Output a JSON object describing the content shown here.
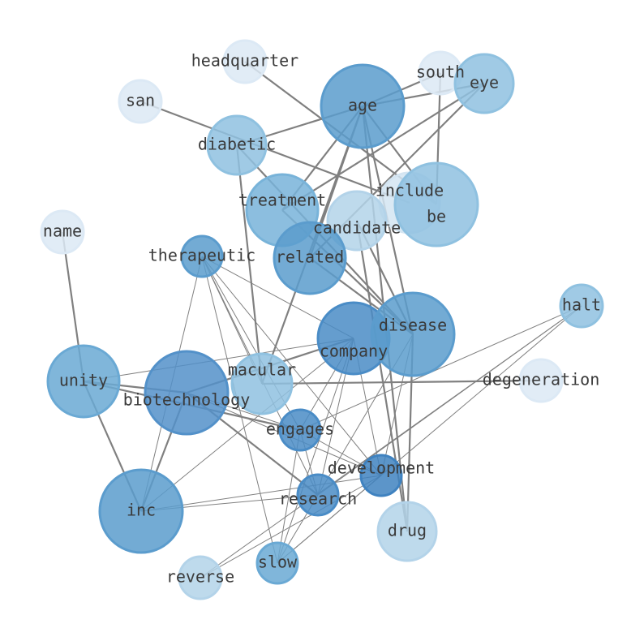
{
  "nodes": [
    {
      "id": "headquarter",
      "label": "headquarter",
      "color": "#dce9f5"
    },
    {
      "id": "san",
      "label": "san",
      "color": "#dce9f5"
    },
    {
      "id": "south",
      "label": "south",
      "color": "#dce9f5"
    },
    {
      "id": "eye",
      "label": "eye",
      "color": "#8fc1e0"
    },
    {
      "id": "age",
      "label": "age",
      "color": "#5b9ccd"
    },
    {
      "id": "diabetic",
      "label": "diabetic",
      "color": "#8fc1e0"
    },
    {
      "id": "include",
      "label": "include",
      "color": "#d4e5f2"
    },
    {
      "id": "be",
      "label": "be",
      "color": "#8fc1e0"
    },
    {
      "id": "treatment",
      "label": "treatment",
      "color": "#78b3d9"
    },
    {
      "id": "candidate",
      "label": "candidate",
      "color": "#b3d3e9"
    },
    {
      "id": "name",
      "label": "name",
      "color": "#dce9f5"
    },
    {
      "id": "therapeutic",
      "label": "therapeutic",
      "color": "#5b9ccd"
    },
    {
      "id": "related",
      "label": "related",
      "color": "#5b9ccd"
    },
    {
      "id": "halt",
      "label": "halt",
      "color": "#8fc1e0"
    },
    {
      "id": "company",
      "label": "company",
      "color": "#4a8cc6"
    },
    {
      "id": "disease",
      "label": "disease",
      "color": "#5b9ccd"
    },
    {
      "id": "unity",
      "label": "unity",
      "color": "#6aa9d4"
    },
    {
      "id": "biotechnology",
      "label": "biotechnology",
      "color": "#5391c9"
    },
    {
      "id": "macular",
      "label": "macular",
      "color": "#8fc1e0"
    },
    {
      "id": "degeneration",
      "label": "degeneration",
      "color": "#dce9f5"
    },
    {
      "id": "engages",
      "label": "engages",
      "color": "#4a8cc6"
    },
    {
      "id": "development",
      "label": "development",
      "color": "#3f82c0"
    },
    {
      "id": "research",
      "label": "research",
      "color": "#4a8cc6"
    },
    {
      "id": "inc",
      "label": "inc",
      "color": "#5b9ccd"
    },
    {
      "id": "drug",
      "label": "drug",
      "color": "#b3d3e9"
    },
    {
      "id": "slow",
      "label": "slow",
      "color": "#6aa9d4"
    },
    {
      "id": "reverse",
      "label": "reverse",
      "color": "#b3d3e9"
    }
  ],
  "edges": [
    [
      "headquarter",
      "be",
      "strong"
    ],
    [
      "san",
      "include",
      "strong"
    ],
    [
      "age",
      "eye",
      "strong"
    ],
    [
      "south",
      "age",
      "strong"
    ],
    [
      "age",
      "diabetic",
      "strong"
    ],
    [
      "age",
      "treatment",
      "strong"
    ],
    [
      "age",
      "related",
      "strong"
    ],
    [
      "age",
      "macular",
      "strong"
    ],
    [
      "age",
      "disease",
      "strong"
    ],
    [
      "age",
      "be",
      "strong"
    ],
    [
      "eye",
      "treatment",
      "strong"
    ],
    [
      "eye",
      "related",
      "strong"
    ],
    [
      "south",
      "be",
      "strong"
    ],
    [
      "diabetic",
      "macular",
      "strong"
    ],
    [
      "diabetic",
      "disease",
      "strong"
    ],
    [
      "treatment",
      "disease",
      "strong"
    ],
    [
      "related",
      "disease",
      "strong"
    ],
    [
      "candidate",
      "disease",
      "strong"
    ],
    [
      "candidate",
      "drug",
      "strong"
    ],
    [
      "name",
      "unity",
      "strong"
    ],
    [
      "unity",
      "inc",
      "strong"
    ],
    [
      "unity",
      "biotechnology",
      "strong"
    ],
    [
      "unity",
      "engages",
      "strong"
    ],
    [
      "biotechnology",
      "company",
      "strong"
    ],
    [
      "biotechnology",
      "research",
      "strong"
    ],
    [
      "biotechnology",
      "inc",
      "strong"
    ],
    [
      "macular",
      "degeneration",
      "strong"
    ],
    [
      "disease",
      "drug",
      "strong"
    ],
    [
      "age",
      "drug",
      "strong"
    ],
    [
      "unity",
      "company",
      "weak"
    ],
    [
      "therapeutic",
      "company",
      "weak"
    ],
    [
      "therapeutic",
      "macular",
      "weak"
    ],
    [
      "therapeutic",
      "engages",
      "weak"
    ],
    [
      "therapeutic",
      "research",
      "weak"
    ],
    [
      "therapeutic",
      "development",
      "weak"
    ],
    [
      "therapeutic",
      "slow",
      "weak"
    ],
    [
      "therapeutic",
      "inc",
      "weak"
    ],
    [
      "company",
      "engages",
      "weak"
    ],
    [
      "company",
      "research",
      "weak"
    ],
    [
      "company",
      "slow",
      "weak"
    ],
    [
      "company",
      "development",
      "weak"
    ],
    [
      "company",
      "inc",
      "weak"
    ],
    [
      "disease",
      "development",
      "weak"
    ],
    [
      "disease",
      "research",
      "weak"
    ],
    [
      "halt",
      "engages",
      "weak"
    ],
    [
      "halt",
      "research",
      "weak"
    ],
    [
      "halt",
      "reverse",
      "weak"
    ],
    [
      "halt",
      "slow",
      "weak"
    ],
    [
      "engages",
      "development",
      "weak"
    ],
    [
      "engages",
      "slow",
      "weak"
    ],
    [
      "engages",
      "research",
      "weak"
    ],
    [
      "development",
      "inc",
      "weak"
    ],
    [
      "development",
      "reverse",
      "weak"
    ],
    [
      "research",
      "inc",
      "weak"
    ],
    [
      "research",
      "slow",
      "weak"
    ],
    [
      "development",
      "slow",
      "weak"
    ],
    [
      "biotechnology",
      "development",
      "weak"
    ],
    [
      "biotechnology",
      "engages",
      "weak"
    ]
  ],
  "colors": {
    "edge": "#808080",
    "label": "#3a3a3a"
  }
}
